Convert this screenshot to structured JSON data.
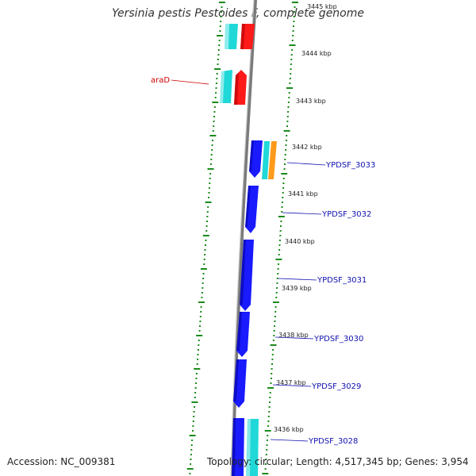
{
  "title": "Yersinia pestis Pestoides F, complete genome",
  "footer": {
    "accession": "Accession: NC_009381",
    "topology": "Topology: circular; Length: 4,517,345 bp; Genes: 3,954"
  },
  "ticks": [
    "3445 kbp",
    "3444 kbp",
    "3443 kbp",
    "3442 kbp",
    "3441 kbp",
    "3440 kbp",
    "3439 kbp",
    "3438 kbp",
    "3437 kbp",
    "3436 kbp"
  ],
  "gene_labels": [
    "YPDSF_3033",
    "YPDSF_3032",
    "YPDSF_3031",
    "YPDSF_3030",
    "YPDSF_3029",
    "YPDSF_3028"
  ],
  "left_label": "araD",
  "colors": {
    "forward_cds": "#1a1aff",
    "reverse_cds": "#ff1a1a",
    "cyan": "#20d8d8",
    "orange": "#ff9a1a",
    "backbone": "#888888",
    "gc_ticks": "#1a8a1a",
    "label_blue": "#1010b0",
    "label_red": "#cc0000"
  }
}
